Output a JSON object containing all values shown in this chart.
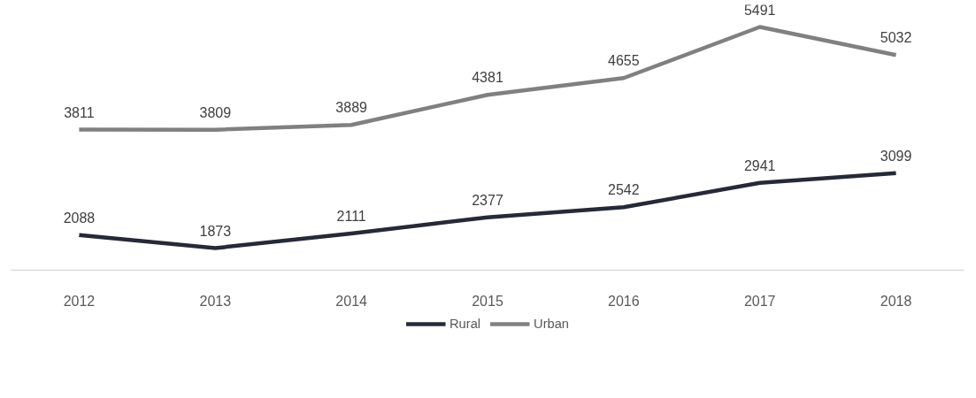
{
  "chart_data": {
    "type": "line",
    "categories": [
      "2012",
      "2013",
      "2014",
      "2015",
      "2016",
      "2017",
      "2018"
    ],
    "series": [
      {
        "name": "Rural",
        "color": "#262938",
        "values": [
          2088,
          1873,
          2111,
          2377,
          2542,
          2941,
          3099
        ]
      },
      {
        "name": "Urban",
        "color": "#808080",
        "values": [
          3811,
          3809,
          3889,
          4381,
          4655,
          5491,
          5032
        ]
      }
    ],
    "data_labels": true,
    "legend": "bottom",
    "grid": false,
    "marker": "none",
    "line_style": "solid",
    "tick_labels": "x"
  }
}
